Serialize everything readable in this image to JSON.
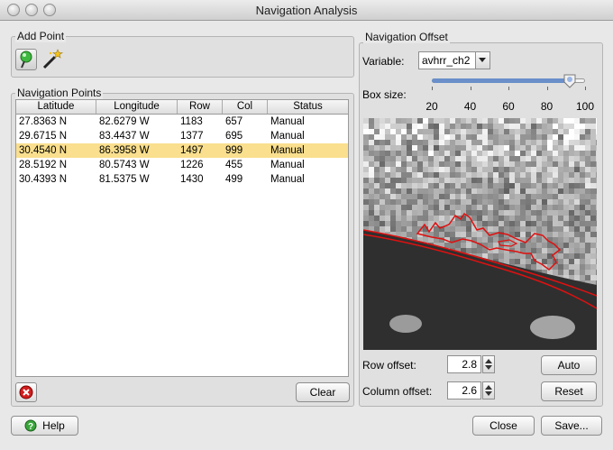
{
  "window": {
    "title": "Navigation Analysis"
  },
  "add_point": {
    "legend": "Add Point"
  },
  "nav_points": {
    "legend": "Navigation Points",
    "columns": [
      "Latitude",
      "Longitude",
      "Row",
      "Col",
      "Status"
    ],
    "rows": [
      [
        "27.8363 N",
        "82.6279 W",
        "1183",
        "657",
        "Manual"
      ],
      [
        "29.6715 N",
        "83.4437 W",
        "1377",
        "695",
        "Manual"
      ],
      [
        "30.4540 N",
        "86.3958 W",
        "1497",
        "999",
        "Manual"
      ],
      [
        "28.5192 N",
        "80.5743 W",
        "1226",
        "455",
        "Manual"
      ],
      [
        "30.4393 N",
        "81.5375 W",
        "1430",
        "499",
        "Manual"
      ]
    ],
    "selected_row": 2,
    "clear_label": "Clear"
  },
  "nav_offset": {
    "legend": "Navigation Offset",
    "variable_label": "Variable:",
    "variable_value": "avhrr_ch2",
    "box_size_label": "Box size:",
    "box_size_ticks": [
      "20",
      "40",
      "60",
      "80",
      "100"
    ],
    "box_size_value": 92,
    "box_size_min": 20,
    "box_size_max": 100,
    "row_offset_label": "Row offset:",
    "row_offset_value": "2.8",
    "column_offset_label": "Column offset:",
    "column_offset_value": "2.6",
    "auto_label": "Auto",
    "reset_label": "Reset"
  },
  "footer": {
    "help_label": "Help",
    "close_label": "Close",
    "save_label": "Save..."
  },
  "colors": {
    "selected_row": "#f9df8e",
    "coastline": "#e01010",
    "slider_fill": "#6a8fc9"
  }
}
